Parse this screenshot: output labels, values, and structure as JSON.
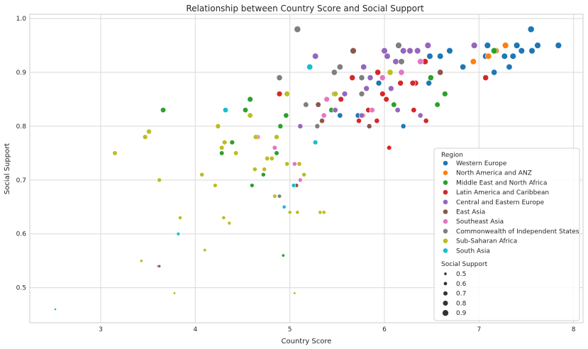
{
  "chart_data": {
    "type": "scatter",
    "title": "Relationship between Country Score and Social Support",
    "xlabel": "Country Score",
    "ylabel": "Social Support",
    "xlim": [
      2.25,
      8.1
    ],
    "ylim": [
      0.435,
      1.008
    ],
    "xticks": [
      "3",
      "4",
      "5",
      "6",
      "7",
      "8"
    ],
    "yticks": [
      "0.5",
      "0.6",
      "0.7",
      "0.8",
      "0.9",
      "1.0"
    ],
    "grid": true,
    "legend_placement": "bottom-right",
    "legend_title": "Region",
    "size_legend_title": "Social Support",
    "size_legend_values": [
      "0.5",
      "0.6",
      "0.7",
      "0.8",
      "0.9"
    ],
    "series": [
      {
        "name": "Western Europe",
        "color": "#1f77b4",
        "points": [
          [
            7.84,
            0.95
          ],
          [
            7.62,
            0.95
          ],
          [
            7.55,
            0.98
          ],
          [
            7.45,
            0.94
          ],
          [
            7.56,
            0.94
          ],
          [
            7.4,
            0.95
          ],
          [
            7.36,
            0.93
          ],
          [
            7.32,
            0.91
          ],
          [
            7.27,
            0.93
          ],
          [
            7.07,
            0.93
          ],
          [
            7.09,
            0.95
          ],
          [
            7.16,
            0.9
          ],
          [
            6.83,
            0.91
          ],
          [
            6.69,
            0.94
          ],
          [
            6.59,
            0.93
          ],
          [
            6.48,
            0.93
          ],
          [
            6.47,
            0.88
          ],
          [
            6.2,
            0.8
          ],
          [
            5.94,
            0.88
          ],
          [
            5.53,
            0.82
          ],
          [
            5.72,
            0.82
          ]
        ]
      },
      {
        "name": "North America and ANZ",
        "color": "#ff7f0e",
        "points": [
          [
            7.28,
            0.95
          ],
          [
            7.18,
            0.94
          ],
          [
            7.1,
            0.93
          ],
          [
            6.94,
            0.92
          ]
        ]
      },
      {
        "name": "Middle East and North Africa",
        "color": "#2ca02c",
        "points": [
          [
            7.16,
            0.94
          ],
          [
            6.64,
            0.86
          ],
          [
            6.56,
            0.84
          ],
          [
            6.49,
            0.89
          ],
          [
            6.1,
            0.84
          ],
          [
            5.44,
            0.83
          ],
          [
            4.96,
            0.82
          ],
          [
            4.9,
            0.8
          ],
          [
            4.86,
            0.75
          ],
          [
            4.72,
            0.71
          ],
          [
            4.6,
            0.69
          ],
          [
            4.58,
            0.85
          ],
          [
            4.53,
            0.83
          ],
          [
            4.39,
            0.77
          ],
          [
            4.28,
            0.75
          ],
          [
            3.66,
            0.83
          ],
          [
            4.93,
            0.56
          ]
        ]
      },
      {
        "name": "Latin America and Caribbean",
        "color": "#d62728",
        "points": [
          [
            7.07,
            0.89
          ],
          [
            6.43,
            0.92
          ],
          [
            6.33,
            0.88
          ],
          [
            6.3,
            0.88
          ],
          [
            6.31,
            0.83
          ],
          [
            6.17,
            0.88
          ],
          [
            6.02,
            0.85
          ],
          [
            5.98,
            0.86
          ],
          [
            5.93,
            0.9
          ],
          [
            5.92,
            0.81
          ],
          [
            5.83,
            0.83
          ],
          [
            5.73,
            0.81
          ],
          [
            5.77,
            0.82
          ],
          [
            5.66,
            0.89
          ],
          [
            5.54,
            0.85
          ],
          [
            6.44,
            0.81
          ],
          [
            6.05,
            0.76
          ],
          [
            4.89,
            0.86
          ],
          [
            3.61,
            0.54
          ]
        ]
      },
      {
        "name": "Central and Eastern Europe",
        "color": "#9467bd",
        "points": [
          [
            6.95,
            0.95
          ],
          [
            6.46,
            0.95
          ],
          [
            6.35,
            0.94
          ],
          [
            6.27,
            0.94
          ],
          [
            6.2,
            0.94
          ],
          [
            6.12,
            0.92
          ],
          [
            6.03,
            0.93
          ],
          [
            6.0,
            0.94
          ],
          [
            5.85,
            0.89
          ],
          [
            5.78,
            0.91
          ],
          [
            5.81,
            0.87
          ],
          [
            5.58,
            0.86
          ],
          [
            5.48,
            0.83
          ],
          [
            5.27,
            0.93
          ],
          [
            5.11,
            0.8
          ],
          [
            6.07,
            0.87
          ],
          [
            6.38,
            0.82
          ],
          [
            6.14,
            0.83
          ],
          [
            5.76,
            0.82
          ]
        ]
      },
      {
        "name": "East Asia",
        "color": "#8c564b",
        "points": [
          [
            6.59,
            0.9
          ],
          [
            5.67,
            0.94
          ],
          [
            5.84,
            0.8
          ],
          [
            5.34,
            0.81
          ],
          [
            5.3,
            0.84
          ],
          [
            5.07,
            0.69
          ],
          [
            3.62,
            0.54
          ]
        ]
      },
      {
        "name": "Southeast Asia",
        "color": "#e377c2",
        "points": [
          [
            6.38,
            0.92
          ],
          [
            6.18,
            0.9
          ],
          [
            5.98,
            0.89
          ],
          [
            5.87,
            0.83
          ],
          [
            5.39,
            0.85
          ],
          [
            5.36,
            0.82
          ],
          [
            4.84,
            0.76
          ],
          [
            4.66,
            0.78
          ],
          [
            5.05,
            0.73
          ],
          [
            5.11,
            0.7
          ]
        ]
      },
      {
        "name": "Commonwealth of Independent States",
        "color": "#7f7f7f",
        "points": [
          [
            6.15,
            0.95
          ],
          [
            6.18,
            0.92
          ],
          [
            5.76,
            0.89
          ],
          [
            5.53,
            0.91
          ],
          [
            5.47,
            0.9
          ],
          [
            5.76,
            0.86
          ],
          [
            5.47,
            0.86
          ],
          [
            5.17,
            0.84
          ],
          [
            5.29,
            0.8
          ],
          [
            5.08,
            0.98
          ],
          [
            4.89,
            0.89
          ],
          [
            4.89,
            0.67
          ]
        ]
      },
      {
        "name": "Sub-Saharan Africa",
        "color": "#bcbd22",
        "points": [
          [
            6.06,
            0.9
          ],
          [
            5.48,
            0.86
          ],
          [
            4.97,
            0.86
          ],
          [
            4.58,
            0.82
          ],
          [
            4.24,
            0.8
          ],
          [
            4.64,
            0.78
          ],
          [
            4.86,
            0.78
          ],
          [
            4.31,
            0.77
          ],
          [
            4.28,
            0.76
          ],
          [
            4.43,
            0.75
          ],
          [
            4.81,
            0.74
          ],
          [
            4.76,
            0.74
          ],
          [
            4.97,
            0.73
          ],
          [
            5.1,
            0.73
          ],
          [
            5.15,
            0.71
          ],
          [
            4.73,
            0.72
          ],
          [
            4.63,
            0.72
          ],
          [
            4.07,
            0.71
          ],
          [
            4.21,
            0.69
          ],
          [
            3.62,
            0.7
          ],
          [
            3.15,
            0.75
          ],
          [
            3.51,
            0.79
          ],
          [
            3.47,
            0.78
          ],
          [
            4.84,
            0.67
          ],
          [
            5.0,
            0.64
          ],
          [
            5.08,
            0.64
          ],
          [
            5.32,
            0.64
          ],
          [
            5.36,
            0.64
          ],
          [
            3.84,
            0.63
          ],
          [
            4.3,
            0.63
          ],
          [
            4.36,
            0.62
          ],
          [
            4.1,
            0.57
          ],
          [
            3.43,
            0.55
          ],
          [
            3.78,
            0.49
          ],
          [
            5.05,
            0.49
          ]
        ]
      },
      {
        "name": "South Asia",
        "color": "#17becf",
        "points": [
          [
            5.21,
            0.91
          ],
          [
            4.32,
            0.83
          ],
          [
            5.27,
            0.77
          ],
          [
            5.04,
            0.69
          ],
          [
            4.94,
            0.65
          ],
          [
            3.82,
            0.6
          ],
          [
            2.52,
            0.46
          ]
        ]
      }
    ]
  }
}
